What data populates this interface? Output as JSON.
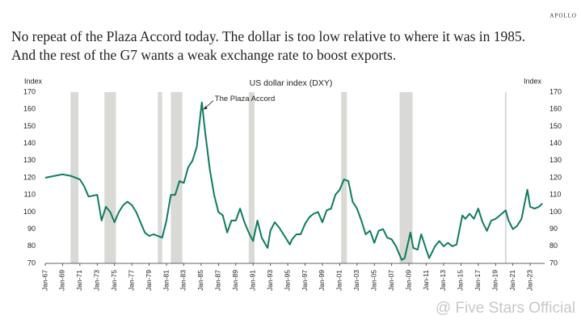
{
  "brand": "APOLLO",
  "headline": [
    "No repeat of the Plaza Accord today. The dollar is too low relative to where it was in 1985.",
    "And the rest of the G7 wants a weak exchange rate to boost exports."
  ],
  "watermark": "@ Five Stars Official",
  "chart_data": {
    "type": "line",
    "title": "US dollar index (DXY)",
    "y_label": "Index",
    "y2_label": "Index",
    "annotation": {
      "text": "The Plaza Accord",
      "x": "1985-02"
    },
    "color": "#0e7c5e",
    "recession_color": "#d9d9d6",
    "recessions": [
      [
        "1969-12",
        "1970-11"
      ],
      [
        "1973-11",
        "1975-03"
      ],
      [
        "1980-01",
        "1980-07"
      ],
      [
        "1981-07",
        "1982-11"
      ],
      [
        "1990-07",
        "1991-03"
      ],
      [
        "2001-03",
        "2001-11"
      ],
      [
        "2007-12",
        "2009-06"
      ],
      [
        "2020-02",
        "2020-04"
      ]
    ],
    "x": [
      "1967-01",
      "1968-01",
      "1969-01",
      "1970-01",
      "1971-01",
      "1971-07",
      "1972-01",
      "1973-01",
      "1973-07",
      "1974-01",
      "1974-07",
      "1975-01",
      "1975-07",
      "1976-01",
      "1976-07",
      "1977-01",
      "1977-07",
      "1978-01",
      "1978-07",
      "1979-01",
      "1979-07",
      "1980-01",
      "1980-07",
      "1981-01",
      "1981-07",
      "1982-01",
      "1982-07",
      "1983-01",
      "1983-07",
      "1984-01",
      "1984-07",
      "1985-02",
      "1985-07",
      "1986-01",
      "1986-07",
      "1987-01",
      "1987-07",
      "1988-01",
      "1988-07",
      "1989-01",
      "1989-07",
      "1990-01",
      "1990-07",
      "1991-01",
      "1991-07",
      "1992-01",
      "1992-09",
      "1993-01",
      "1993-07",
      "1994-01",
      "1994-07",
      "1995-04",
      "1995-07",
      "1996-01",
      "1996-07",
      "1997-01",
      "1997-07",
      "1998-01",
      "1998-07",
      "1999-01",
      "1999-07",
      "2000-01",
      "2000-07",
      "2001-01",
      "2001-07",
      "2002-01",
      "2002-07",
      "2003-01",
      "2003-07",
      "2004-01",
      "2004-07",
      "2005-01",
      "2005-07",
      "2006-01",
      "2006-07",
      "2007-01",
      "2007-07",
      "2008-03",
      "2008-07",
      "2009-03",
      "2009-07",
      "2010-01",
      "2010-06",
      "2011-01",
      "2011-05",
      "2012-01",
      "2012-07",
      "2013-01",
      "2013-07",
      "2014-01",
      "2014-07",
      "2015-03",
      "2015-07",
      "2016-01",
      "2016-07",
      "2017-01",
      "2017-07",
      "2018-01",
      "2018-07",
      "2019-01",
      "2019-07",
      "2020-03",
      "2020-07",
      "2021-01",
      "2021-07",
      "2022-01",
      "2022-09",
      "2023-01",
      "2023-07",
      "2024-01",
      "2024-06"
    ],
    "values": [
      120,
      121,
      122,
      121,
      119,
      115,
      109,
      110,
      95,
      103,
      100,
      94,
      100,
      104,
      106,
      104,
      100,
      94,
      88,
      86,
      87,
      86,
      85,
      95,
      110,
      110,
      118,
      117,
      126,
      130,
      138,
      164,
      145,
      125,
      110,
      100,
      98,
      88,
      95,
      95,
      102,
      94,
      88,
      83,
      95,
      85,
      79,
      89,
      94,
      91,
      87,
      81,
      84,
      87,
      87,
      93,
      97,
      99,
      100,
      94,
      101,
      102,
      110,
      113,
      119,
      118,
      106,
      102,
      95,
      87,
      89,
      82,
      89,
      90,
      85,
      84,
      80,
      72,
      73,
      88,
      79,
      78,
      87,
      78,
      73,
      80,
      83,
      80,
      82,
      80,
      81,
      98,
      96,
      99,
      96,
      102,
      94,
      89,
      95,
      96,
      98,
      101,
      95,
      90,
      92,
      96,
      113,
      103,
      102,
      103,
      105
    ],
    "xlim": [
      "1967-01",
      "2024-09"
    ],
    "xticks": [
      {
        "value": "1967-01",
        "label": "Jan-67"
      },
      {
        "value": "1969-01",
        "label": "Jan-69"
      },
      {
        "value": "1971-01",
        "label": "Jan-71"
      },
      {
        "value": "1973-01",
        "label": "Jan-73"
      },
      {
        "value": "1975-01",
        "label": "Jan-75"
      },
      {
        "value": "1977-01",
        "label": "Jan-77"
      },
      {
        "value": "1979-01",
        "label": "Jan-79"
      },
      {
        "value": "1981-01",
        "label": "Jan-81"
      },
      {
        "value": "1983-01",
        "label": "Jan-83"
      },
      {
        "value": "1985-01",
        "label": "Jan-85"
      },
      {
        "value": "1987-01",
        "label": "Jan-87"
      },
      {
        "value": "1989-01",
        "label": "Jan-89"
      },
      {
        "value": "1991-01",
        "label": "Jan-91"
      },
      {
        "value": "1993-01",
        "label": "Jan-93"
      },
      {
        "value": "1995-01",
        "label": "Jan-95"
      },
      {
        "value": "1997-01",
        "label": "Jan-97"
      },
      {
        "value": "1999-01",
        "label": "Jan-99"
      },
      {
        "value": "2001-01",
        "label": "Jan-01"
      },
      {
        "value": "2003-01",
        "label": "Jan-03"
      },
      {
        "value": "2005-01",
        "label": "Jan-05"
      },
      {
        "value": "2007-01",
        "label": "Jan-07"
      },
      {
        "value": "2009-01",
        "label": "Jan-09"
      },
      {
        "value": "2011-01",
        "label": "Jan-11"
      },
      {
        "value": "2013-01",
        "label": "Jan-13"
      },
      {
        "value": "2015-01",
        "label": "Jan-15"
      },
      {
        "value": "2017-01",
        "label": "Jan-17"
      },
      {
        "value": "2019-01",
        "label": "Jan-19"
      },
      {
        "value": "2021-01",
        "label": "Jan-21"
      },
      {
        "value": "2023-01",
        "label": "Jan-23"
      }
    ],
    "ylim": [
      70,
      170
    ],
    "yticks": [
      70,
      80,
      90,
      100,
      110,
      120,
      130,
      140,
      150,
      160,
      170
    ],
    "y2lim": [
      70,
      170
    ],
    "y2ticks": [
      70,
      80,
      90,
      100,
      110,
      120,
      130,
      140,
      150,
      160,
      170
    ]
  }
}
